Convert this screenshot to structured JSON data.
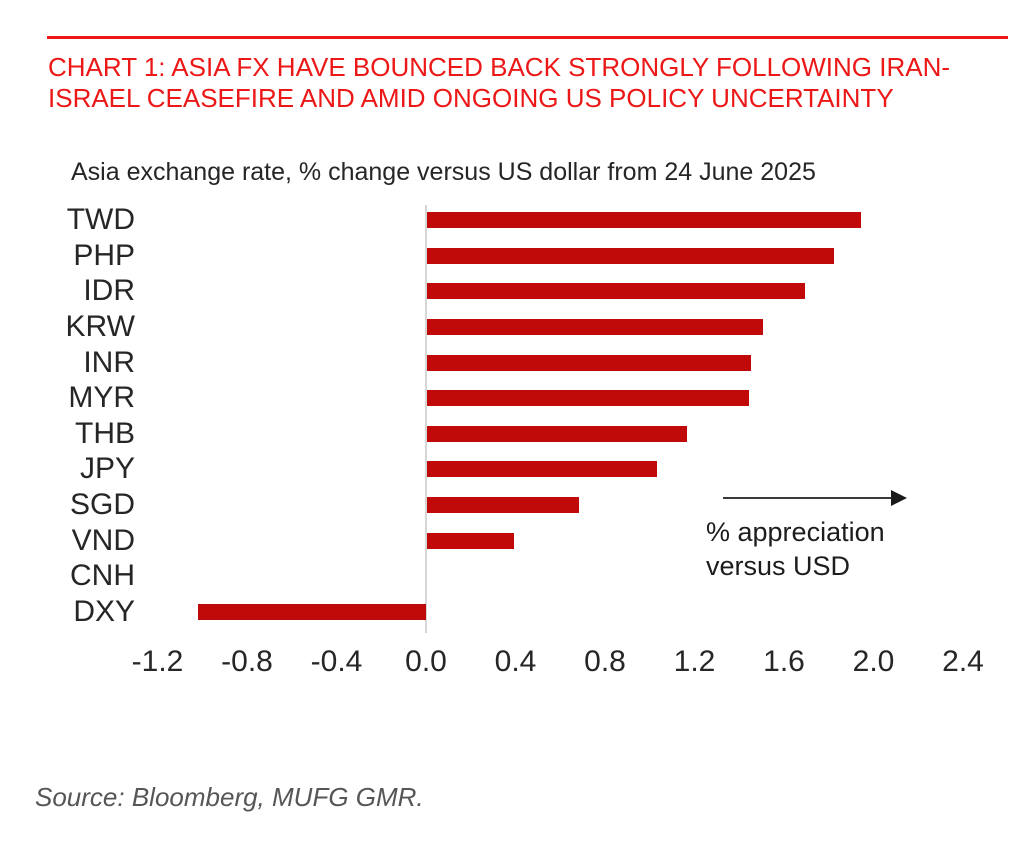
{
  "page": {
    "title_line1": "CHART 1: ASIA FX HAVE BOUNCED BACK STRONGLY FOLLOWING IRAN-",
    "title_line2": "ISRAEL CEASEFIRE AND AMID ONGOING US POLICY UNCERTAINTY",
    "source": "Source: Bloomberg, MUFG GMR."
  },
  "colors": {
    "accent_red": "#ec1717",
    "bar_red": "#c00a0a",
    "axis_gray": "#d6d6d6",
    "text_dark": "#262626",
    "source_gray": "#565656"
  },
  "chart_data": {
    "type": "bar",
    "orientation": "horizontal",
    "title": "Asia exchange rate, % change versus US dollar from 24 June 2025",
    "categories": [
      "TWD",
      "PHP",
      "IDR",
      "KRW",
      "INR",
      "MYR",
      "THB",
      "JPY",
      "SGD",
      "VND",
      "CNH",
      "DXY"
    ],
    "values": [
      1.94,
      1.82,
      1.69,
      1.5,
      1.45,
      1.44,
      1.16,
      1.03,
      0.68,
      0.39,
      0.0,
      -1.02
    ],
    "xlabel": "",
    "ylabel": "",
    "xlim": [
      -1.2,
      2.4
    ],
    "xticks": [
      "-1.2",
      "-0.8",
      "-0.4",
      "0.0",
      "0.4",
      "0.8",
      "1.2",
      "1.6",
      "2.0",
      "2.4"
    ],
    "xtick_values": [
      -1.2,
      -0.8,
      -0.4,
      0.0,
      0.4,
      0.8,
      1.2,
      1.6,
      2.0,
      2.4
    ],
    "grid": false,
    "legend": false,
    "annotation": {
      "line1": "% appreciation",
      "line2": "versus USD",
      "arrow_direction": "right"
    }
  }
}
